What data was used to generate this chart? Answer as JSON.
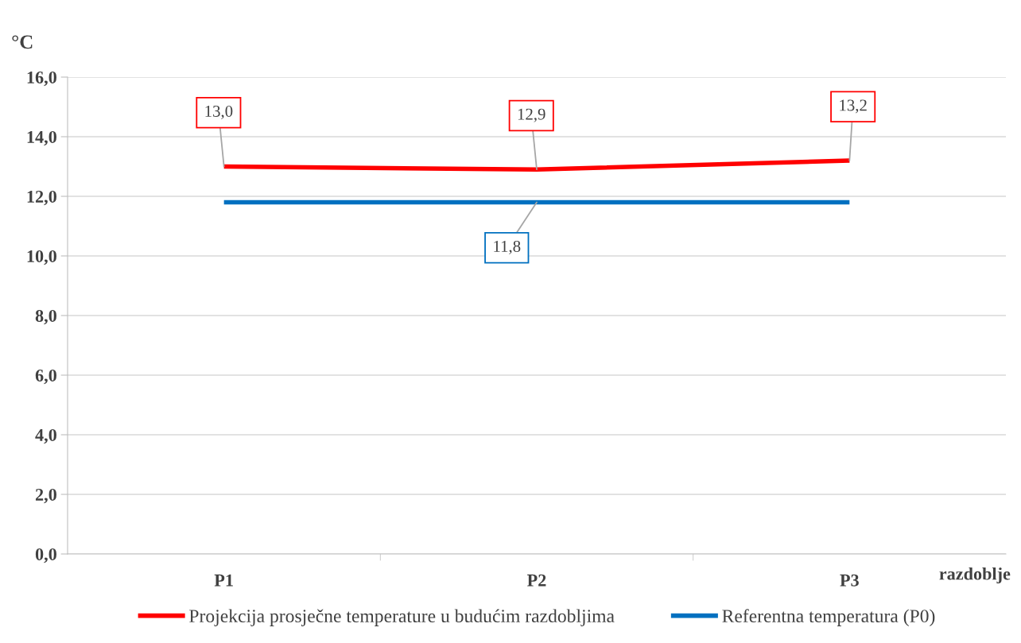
{
  "chart_data": {
    "type": "line",
    "ylabel": "°C",
    "xlabel": "razdoblje",
    "categories": [
      "P1",
      "P2",
      "P3"
    ],
    "series": [
      {
        "name": "Projekcija prosječne temperature u budućim razdobljima",
        "color": "#ff0000",
        "values": [
          13.0,
          12.9,
          13.2
        ],
        "value_labels": [
          "13,0",
          "12,9",
          "13,2"
        ]
      },
      {
        "name": "Referentna temperatura (P0)",
        "color": "#0070c0",
        "values": [
          11.8,
          11.8,
          11.8
        ],
        "value_labels": [
          null,
          "11,8",
          null
        ]
      }
    ],
    "ylim": [
      0,
      16
    ],
    "yticks": [
      {
        "value": 0,
        "label": "0,0"
      },
      {
        "value": 2,
        "label": "2,0"
      },
      {
        "value": 4,
        "label": "4,0"
      },
      {
        "value": 6,
        "label": "6,0"
      },
      {
        "value": 8,
        "label": "8,0"
      },
      {
        "value": 10,
        "label": "10,0"
      },
      {
        "value": 12,
        "label": "12,0"
      },
      {
        "value": 14,
        "label": "14,0"
      },
      {
        "value": 16,
        "label": "16,0"
      }
    ],
    "grid": "y",
    "legend": "bottom",
    "marker": "none",
    "line_style": "solid"
  }
}
